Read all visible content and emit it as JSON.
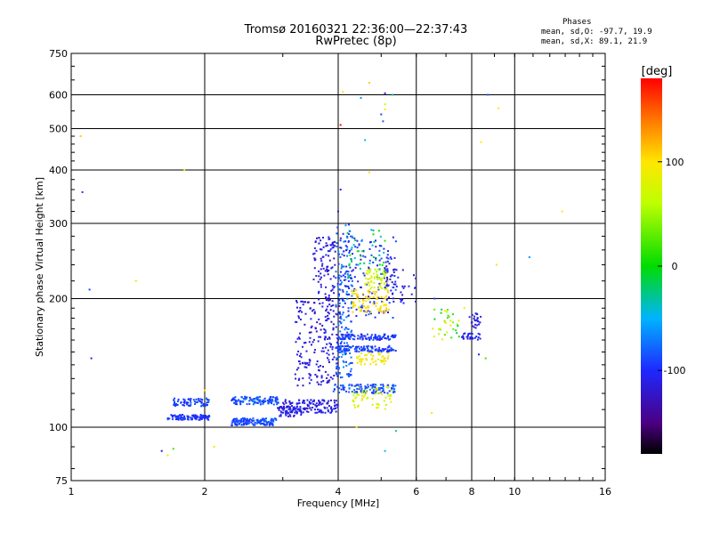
{
  "header": {
    "title_line1": "Tromsø 20160321 22:36:00—22:37:43",
    "title_line2": "RwPretec (8p)"
  },
  "stats": {
    "heading": "Phases",
    "line_o": "mean, sd,O: -97.7, 19.9",
    "line_x": "mean, sd,X:  89.1, 21.9"
  },
  "colorbar": {
    "unit_label": "[deg]",
    "ticks": [
      {
        "value": 100,
        "label": "100"
      },
      {
        "value": 0,
        "label": "0"
      },
      {
        "value": -100,
        "label": "-100"
      }
    ],
    "range": [
      -180,
      180
    ]
  },
  "chart_data": {
    "type": "scatter",
    "xlabel": "Frequency [MHz]",
    "ylabel": "Stationary phase Virtual Height [km]",
    "x_scale": "log",
    "y_scale": "log",
    "xlim": [
      1,
      16
    ],
    "ylim": [
      75,
      750
    ],
    "x_ticks": [
      1,
      2,
      4,
      6,
      8,
      10,
      16
    ],
    "x_tick_labels": [
      "1",
      "2",
      "4",
      "6",
      "8",
      "10",
      "16"
    ],
    "y_ticks": [
      75,
      100,
      200,
      300,
      400,
      500,
      600,
      750
    ],
    "y_tick_labels": [
      "75",
      "100",
      "200",
      "300",
      "400",
      "500",
      "600",
      "750"
    ],
    "grid": true,
    "color_variable": "phase [deg]",
    "clusters": [
      {
        "f": [
          1.65,
          2.05
        ],
        "h": [
          104,
          107
        ],
        "phase": [
          -110,
          -85
        ],
        "n": 110
      },
      {
        "f": [
          1.7,
          2.05
        ],
        "h": [
          112,
          117
        ],
        "phase": [
          -105,
          -75
        ],
        "n": 70
      },
      {
        "f": [
          2.3,
          2.9
        ],
        "h": [
          101,
          105
        ],
        "phase": [
          -100,
          -75
        ],
        "n": 130
      },
      {
        "f": [
          2.3,
          2.95
        ],
        "h": [
          113,
          118
        ],
        "phase": [
          -100,
          -70
        ],
        "n": 110
      },
      {
        "f": [
          2.9,
          3.3
        ],
        "h": [
          106,
          112
        ],
        "phase": [
          -125,
          -100
        ],
        "n": 50
      },
      {
        "f": [
          3.0,
          4.0
        ],
        "h": [
          108,
          116
        ],
        "phase": [
          -125,
          -95
        ],
        "n": 140
      },
      {
        "f": [
          3.2,
          4.0
        ],
        "h": [
          125,
          200
        ],
        "phase": [
          -130,
          -100
        ],
        "n": 200
      },
      {
        "f": [
          3.5,
          3.95
        ],
        "h": [
          200,
          280
        ],
        "phase": [
          -125,
          -100
        ],
        "n": 90
      },
      {
        "f": [
          3.9,
          5.4
        ],
        "h": [
          120,
          126
        ],
        "phase": [
          -100,
          -70
        ],
        "n": 110
      },
      {
        "f": [
          3.95,
          5.4
        ],
        "h": [
          150,
          155
        ],
        "phase": [
          -110,
          -80
        ],
        "n": 110
      },
      {
        "f": [
          3.95,
          5.4
        ],
        "h": [
          160,
          165
        ],
        "phase": [
          -110,
          -80
        ],
        "n": 100
      },
      {
        "f": [
          3.95,
          4.3
        ],
        "h": [
          130,
          300
        ],
        "phase": [
          -100,
          -60
        ],
        "n": 150
      },
      {
        "f": [
          4.0,
          5.4
        ],
        "h": [
          180,
          280
        ],
        "phase": [
          -120,
          -80
        ],
        "n": 160
      },
      {
        "f": [
          4.3,
          5.2
        ],
        "h": [
          185,
          210
        ],
        "phase": [
          90,
          115
        ],
        "n": 80
      },
      {
        "f": [
          4.6,
          5.2
        ],
        "h": [
          210,
          235
        ],
        "phase": [
          50,
          90
        ],
        "n": 60
      },
      {
        "f": [
          4.4,
          5.2
        ],
        "h": [
          140,
          150
        ],
        "phase": [
          80,
          110
        ],
        "n": 45
      },
      {
        "f": [
          4.3,
          5.3
        ],
        "h": [
          110,
          125
        ],
        "phase": [
          55,
          95
        ],
        "n": 55
      },
      {
        "f": [
          4.2,
          5.1
        ],
        "h": [
          225,
          290
        ],
        "phase": [
          -60,
          20
        ],
        "n": 40
      },
      {
        "f": [
          5.1,
          6.0
        ],
        "h": [
          195,
          235
        ],
        "phase": [
          -125,
          -95
        ],
        "n": 45
      },
      {
        "f": [
          6.5,
          7.5
        ],
        "h": [
          160,
          190
        ],
        "phase": [
          -20,
          110
        ],
        "n": 35
      },
      {
        "f": [
          7.6,
          8.4
        ],
        "h": [
          160,
          166
        ],
        "phase": [
          -120,
          -95
        ],
        "n": 30
      },
      {
        "f": [
          7.9,
          8.4
        ],
        "h": [
          170,
          185
        ],
        "phase": [
          -125,
          -100
        ],
        "n": 25
      }
    ],
    "outliers": [
      {
        "f": 1.05,
        "h": 480,
        "phase": 110
      },
      {
        "f": 1.06,
        "h": 355,
        "phase": -95
      },
      {
        "f": 1.1,
        "h": 210,
        "phase": -90
      },
      {
        "f": 1.11,
        "h": 145,
        "phase": -110
      },
      {
        "f": 1.4,
        "h": 220,
        "phase": 95
      },
      {
        "f": 1.6,
        "h": 88,
        "phase": -120
      },
      {
        "f": 1.65,
        "h": 86,
        "phase": 90
      },
      {
        "f": 1.7,
        "h": 89,
        "phase": 20
      },
      {
        "f": 1.8,
        "h": 400,
        "phase": 95
      },
      {
        "f": 2.0,
        "h": 122,
        "phase": 100
      },
      {
        "f": 2.1,
        "h": 90,
        "phase": 100
      },
      {
        "f": 4.0,
        "h": 320,
        "phase": -120
      },
      {
        "f": 4.05,
        "h": 360,
        "phase": -100
      },
      {
        "f": 4.05,
        "h": 510,
        "phase": 175
      },
      {
        "f": 4.1,
        "h": 610,
        "phase": 100
      },
      {
        "f": 4.4,
        "h": 100,
        "phase": 100
      },
      {
        "f": 4.5,
        "h": 590,
        "phase": -60
      },
      {
        "f": 4.6,
        "h": 470,
        "phase": -40
      },
      {
        "f": 4.7,
        "h": 640,
        "phase": 110
      },
      {
        "f": 4.7,
        "h": 395,
        "phase": 100
      },
      {
        "f": 5.0,
        "h": 540,
        "phase": -90
      },
      {
        "f": 5.05,
        "h": 520,
        "phase": -80
      },
      {
        "f": 5.1,
        "h": 555,
        "phase": 100
      },
      {
        "f": 5.1,
        "h": 605,
        "phase": -110
      },
      {
        "f": 5.1,
        "h": 570,
        "phase": 60
      },
      {
        "f": 5.3,
        "h": 600,
        "phase": -40
      },
      {
        "f": 5.4,
        "h": 98,
        "phase": -30
      },
      {
        "f": 5.1,
        "h": 88,
        "phase": -50
      },
      {
        "f": 6.6,
        "h": 200,
        "phase": -90
      },
      {
        "f": 6.5,
        "h": 108,
        "phase": 100
      },
      {
        "f": 7.7,
        "h": 190,
        "phase": 90
      },
      {
        "f": 8.4,
        "h": 465,
        "phase": 100
      },
      {
        "f": 8.7,
        "h": 600,
        "phase": -80
      },
      {
        "f": 8.6,
        "h": 145,
        "phase": 20
      },
      {
        "f": 9.1,
        "h": 240,
        "phase": 100
      },
      {
        "f": 9.2,
        "h": 558,
        "phase": 100
      },
      {
        "f": 10.8,
        "h": 250,
        "phase": -60
      },
      {
        "f": 12.8,
        "h": 320,
        "phase": 100
      },
      {
        "f": 8.3,
        "h": 148,
        "phase": -100
      }
    ]
  }
}
